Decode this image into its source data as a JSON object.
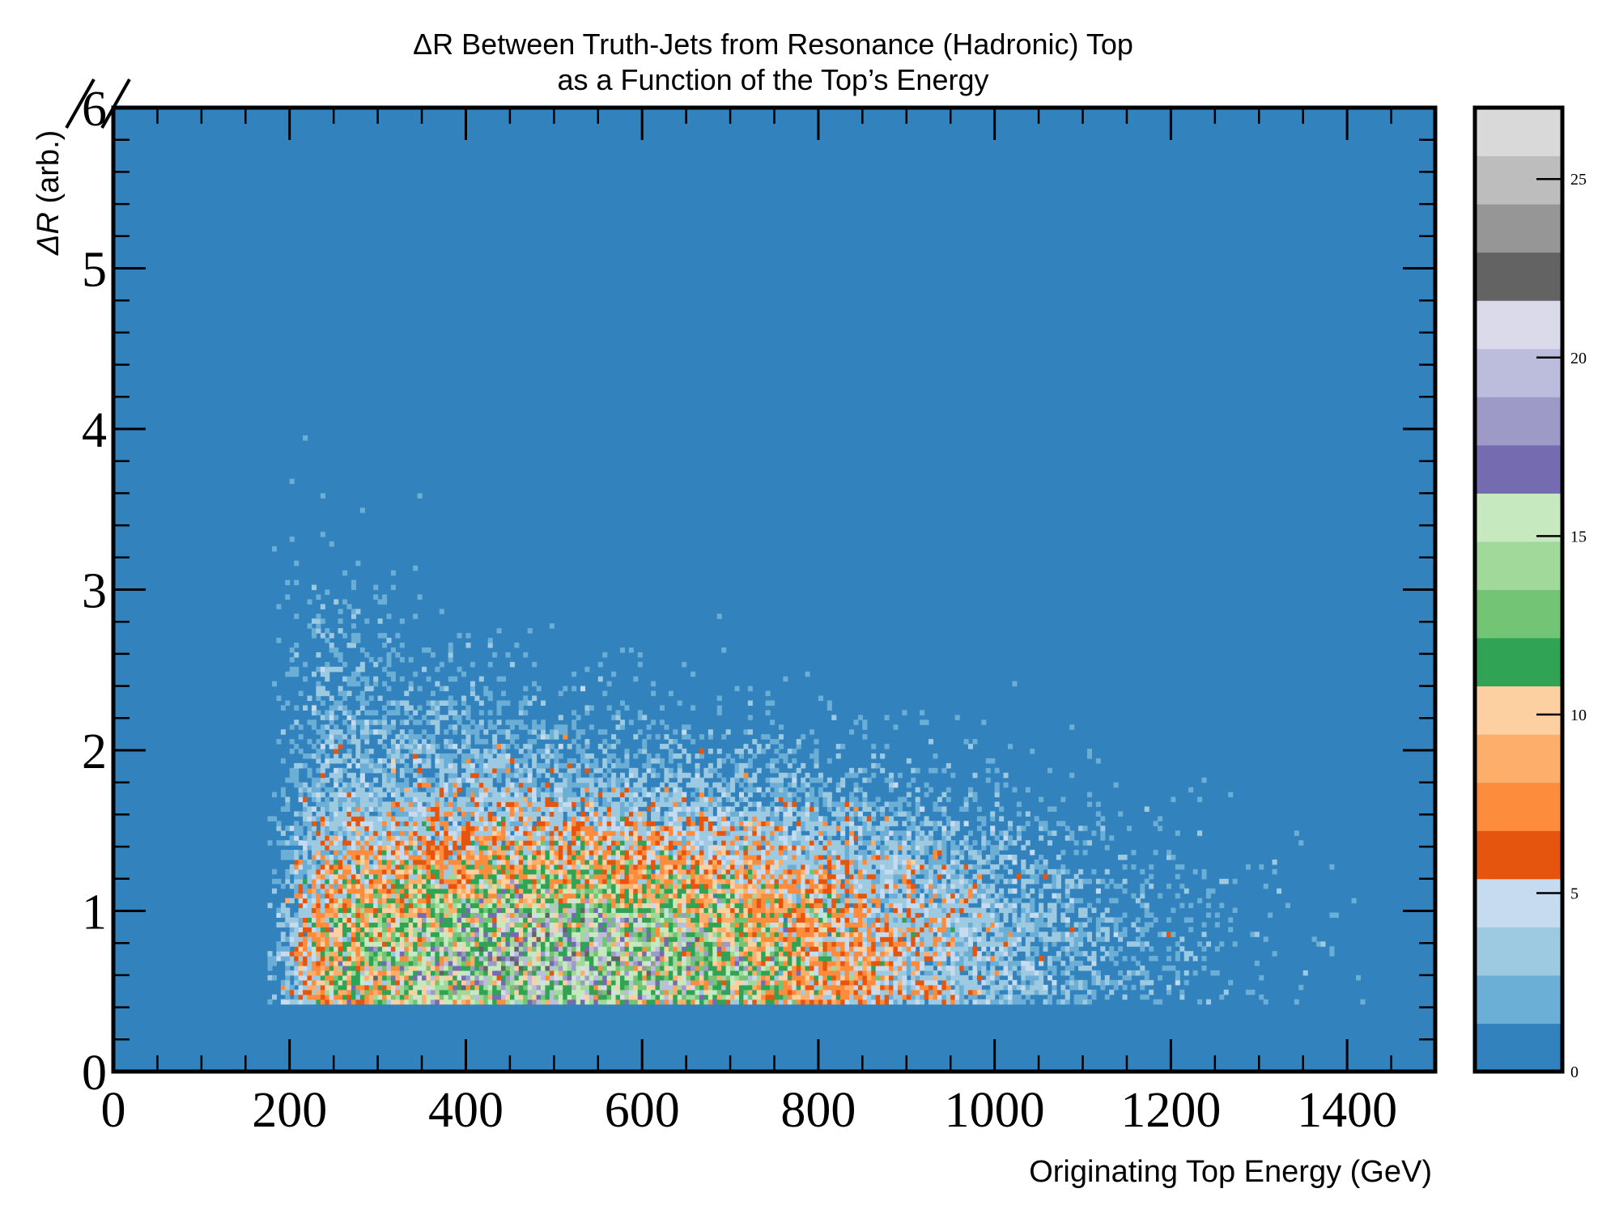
{
  "chart_data": {
    "type": "heatmap",
    "title": "ΔR Between Truth-Jets from Resonance (Hadronic) Top",
    "subtitle": "as a Function of the Top’s Energy",
    "xlabel": "Originating Top Energy (GeV)",
    "ylabel_symbol": "ΔR",
    "ylabel_unit": " (arb.)",
    "xlim": [
      0,
      1500
    ],
    "ylim": [
      0,
      6
    ],
    "x_ticks": [
      "0",
      "200",
      "400",
      "600",
      "800",
      "1000",
      "1200",
      "1400"
    ],
    "y_ticks": [
      "0",
      "1",
      "2",
      "3",
      "4",
      "5",
      "6"
    ],
    "grid": false,
    "colorbar": {
      "range": [
        0,
        27
      ],
      "ticks": [
        "0",
        "5",
        "10",
        "15",
        "20",
        "25"
      ],
      "colors": [
        "#3182bd",
        "#6baed6",
        "#9ecae1",
        "#c6dbef",
        "#e6550d",
        "#fd8d3c",
        "#fdae6b",
        "#fdd0a2",
        "#31a354",
        "#74c476",
        "#a1d99b",
        "#c7e9c0",
        "#756bb1",
        "#9e9ac8",
        "#bcbddc",
        "#dadaeb",
        "#636363",
        "#969696",
        "#bdbdbd",
        "#d9d9d9"
      ]
    },
    "background_color": "#3182bd",
    "distribution": {
      "x_min": 170,
      "x_max": 1460,
      "y_min": 0.42,
      "y_max": 3.8,
      "peak_x": 480,
      "peak_y": 0.65,
      "peak_count": 13
    }
  }
}
